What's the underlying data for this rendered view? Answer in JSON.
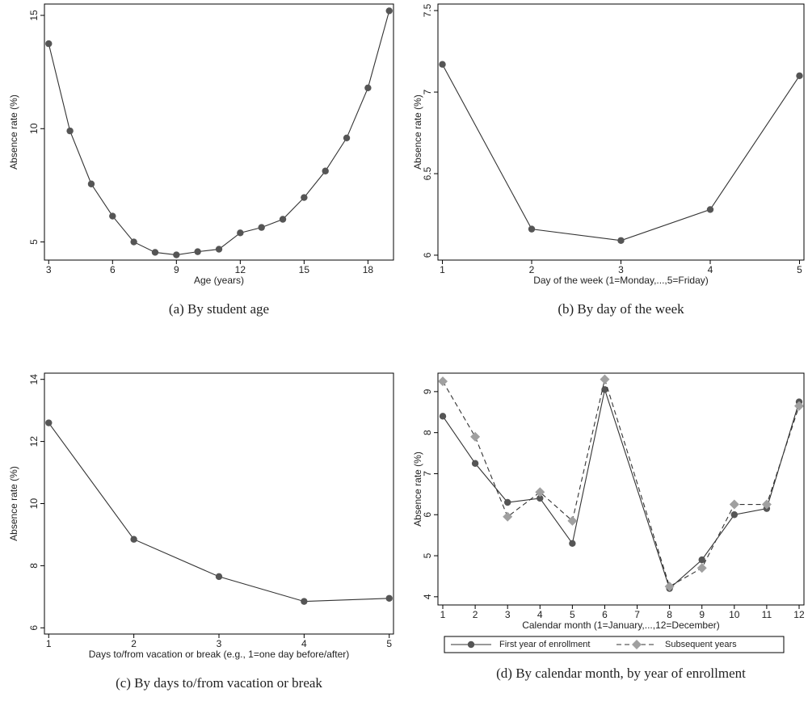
{
  "chart_data": [
    {
      "type": "line",
      "caption": "(a) By student age",
      "x_label": "Age (years)",
      "y_label": "Absence rate (%)",
      "x": [
        3,
        4,
        5,
        6,
        7,
        8,
        9,
        10,
        11,
        12,
        13,
        14,
        15,
        16,
        17,
        18,
        19
      ],
      "values": [
        13.75,
        9.9,
        7.56,
        6.14,
        5.0,
        4.54,
        4.43,
        4.57,
        4.68,
        5.4,
        5.64,
        6.0,
        6.96,
        8.13,
        9.59,
        11.8,
        15.2
      ],
      "color": "#333333",
      "marker_color": "#555555",
      "marker": "circle",
      "line_style": "solid",
      "xlim": [
        2.8,
        19.2
      ],
      "xticks": [
        3,
        6,
        9,
        12,
        15,
        18
      ],
      "ylim": [
        4.2,
        15.5
      ],
      "yticks": [
        5,
        10,
        15
      ]
    },
    {
      "type": "line",
      "caption": "(b) By day of the week",
      "x_label": "Day of the week (1=Monday,...,5=Friday)",
      "y_label": "Absence rate (%)",
      "x": [
        1,
        2,
        3,
        4,
        5
      ],
      "values": [
        7.17,
        6.16,
        6.09,
        6.28,
        7.1
      ],
      "color": "#333333",
      "marker_color": "#555555",
      "marker": "circle",
      "line_style": "solid",
      "xlim": [
        0.95,
        5.05
      ],
      "xticks": [
        1,
        2,
        3,
        4,
        5
      ],
      "ylim": [
        5.97,
        7.54
      ],
      "yticks": [
        6,
        6.5,
        7,
        7.5
      ]
    },
    {
      "type": "line",
      "caption": "(c) By days to/from vacation or break",
      "x_label": "Days to/from vacation or break (e.g., 1=one day before/after)",
      "y_label": "Absence rate (%)",
      "x": [
        1,
        2,
        3,
        4,
        5
      ],
      "values": [
        12.6,
        8.85,
        7.65,
        6.85,
        6.95
      ],
      "color": "#333333",
      "marker_color": "#555555",
      "marker": "circle",
      "line_style": "solid",
      "xlim": [
        0.95,
        5.05
      ],
      "xticks": [
        1,
        2,
        3,
        4,
        5
      ],
      "ylim": [
        5.8,
        14.2
      ],
      "yticks": [
        6,
        8,
        10,
        12,
        14
      ]
    },
    {
      "type": "line",
      "caption": "(d) By calendar month, by year of enrollment",
      "x_label": "Calendar month (1=January,...,12=December)",
      "y_label": "Absence rate (%)",
      "x": [
        1,
        2,
        3,
        4,
        5,
        6,
        8,
        9,
        10,
        11,
        12
      ],
      "series": [
        {
          "name": "First year of enrollment",
          "color": "#333333",
          "marker_color": "#555555",
          "marker": "circle",
          "line_style": "solid",
          "values": [
            8.4,
            7.25,
            6.3,
            6.4,
            5.3,
            9.05,
            4.2,
            4.9,
            6.0,
            6.15,
            8.75
          ]
        },
        {
          "name": "Subsequent years",
          "color": "#333333",
          "marker_color": "#a0a0a0",
          "marker": "diamond",
          "line_style": "dashed",
          "values": [
            9.25,
            7.9,
            5.95,
            6.55,
            5.85,
            9.3,
            4.25,
            4.7,
            6.25,
            6.25,
            8.65
          ]
        }
      ],
      "xlim": [
        0.85,
        12.15
      ],
      "xticks": [
        1,
        2,
        3,
        4,
        5,
        6,
        7,
        8,
        9,
        10,
        11,
        12
      ],
      "ylim": [
        3.8,
        9.45
      ],
      "yticks": [
        4,
        5,
        6,
        7,
        8,
        9
      ]
    }
  ]
}
